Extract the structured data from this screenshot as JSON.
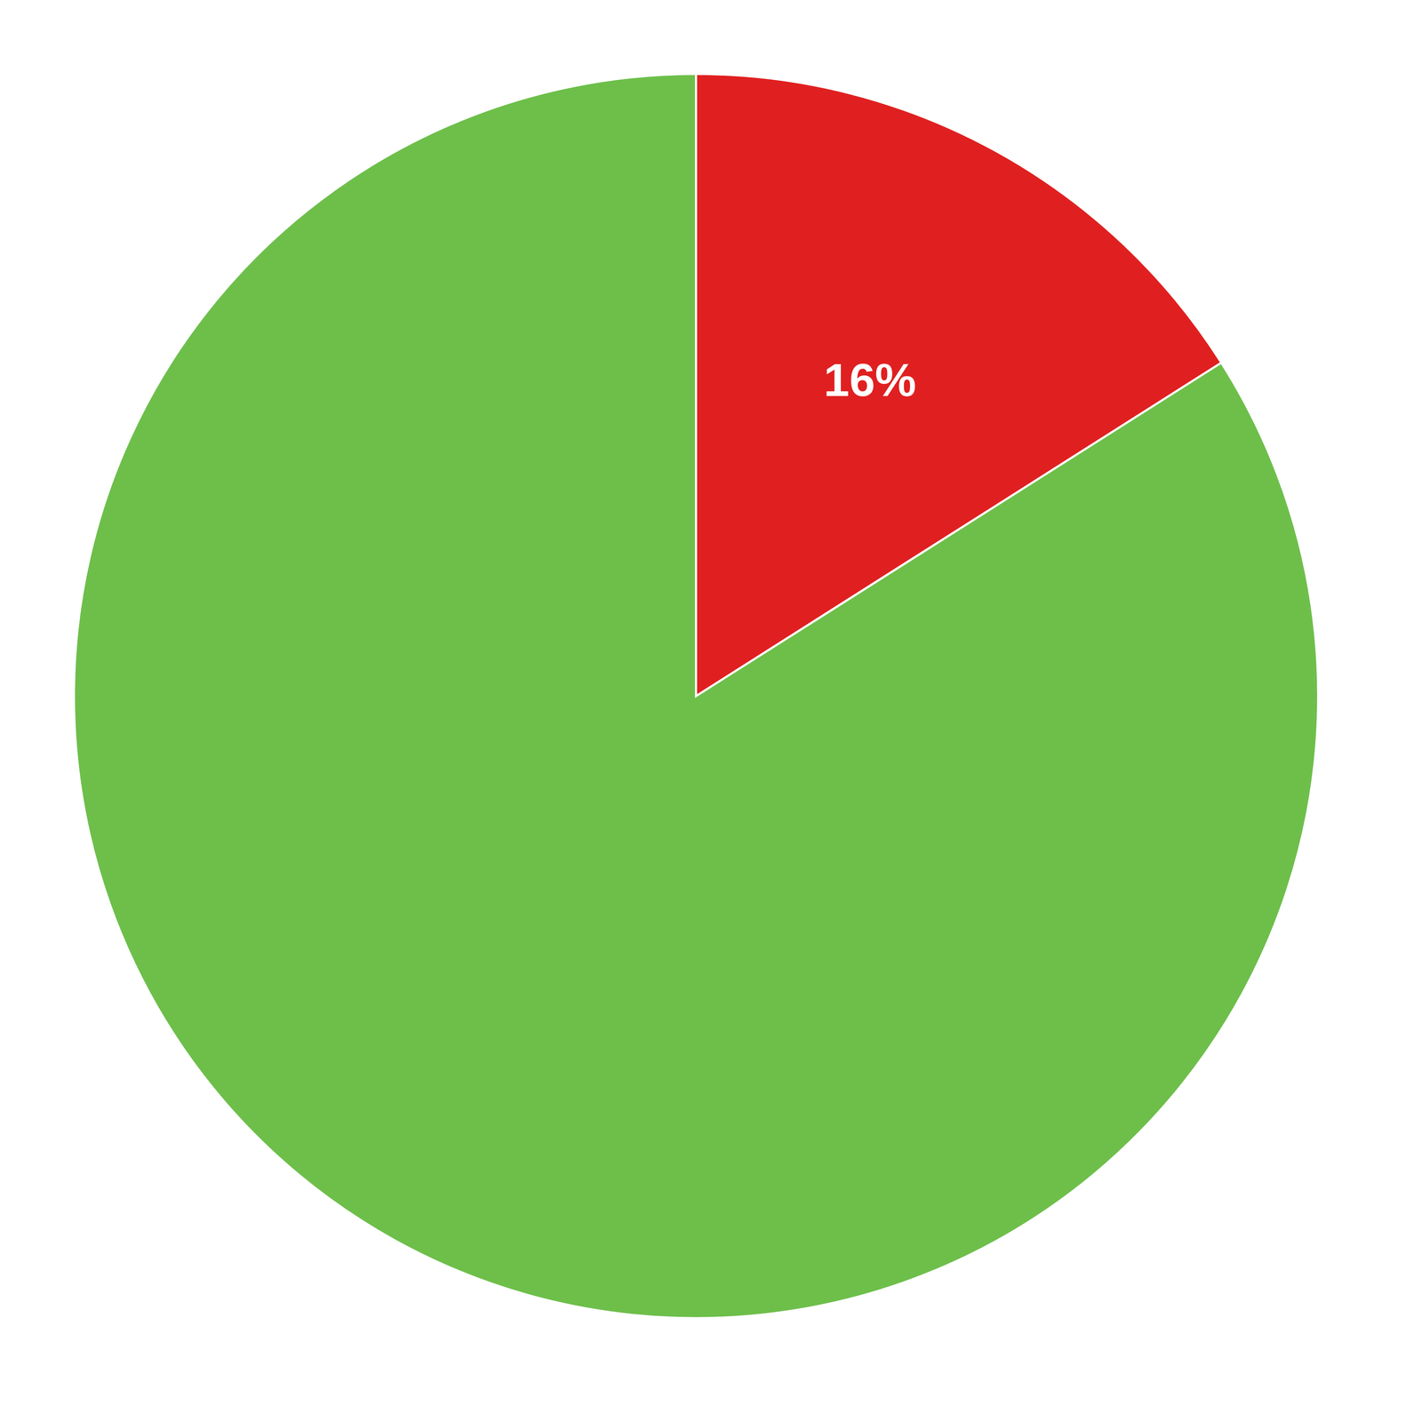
{
  "chart_data": {
    "type": "pie",
    "values": [
      16,
      84
    ],
    "value_labels": [
      "16%",
      null
    ],
    "colors": [
      "#e02020",
      "#6dbf4a"
    ],
    "data_labels": true
  }
}
